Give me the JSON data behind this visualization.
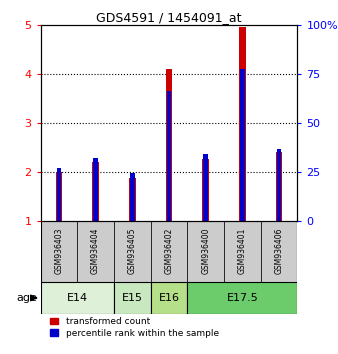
{
  "title": "GDS4591 / 1454091_at",
  "samples": [
    "GSM936403",
    "GSM936404",
    "GSM936405",
    "GSM936402",
    "GSM936400",
    "GSM936401",
    "GSM936406"
  ],
  "red_values": [
    2.0,
    2.2,
    1.87,
    4.1,
    2.25,
    4.95,
    2.4
  ],
  "blue_values": [
    2.07,
    2.27,
    1.97,
    3.65,
    2.37,
    4.1,
    2.47
  ],
  "age_groups": [
    {
      "label": "E14",
      "start": 0,
      "end": 1,
      "color": "#dff0d8"
    },
    {
      "label": "E15",
      "start": 2,
      "end": 2,
      "color": "#c8e8c0"
    },
    {
      "label": "E16",
      "start": 3,
      "end": 3,
      "color": "#b8e090"
    },
    {
      "label": "E17.5",
      "start": 4,
      "end": 6,
      "color": "#6ccc6c"
    }
  ],
  "ylim_left": [
    1,
    5
  ],
  "ylim_right": [
    0,
    100
  ],
  "yticks_left": [
    1,
    2,
    3,
    4,
    5
  ],
  "yticks_right": [
    0,
    25,
    50,
    75,
    100
  ],
  "red_color": "#cc0000",
  "blue_color": "#0000cc",
  "sample_bg_color": "#cccccc",
  "plot_bg_color": "#ffffff",
  "legend_red": "transformed count",
  "legend_blue": "percentile rank within the sample",
  "age_label": "age"
}
